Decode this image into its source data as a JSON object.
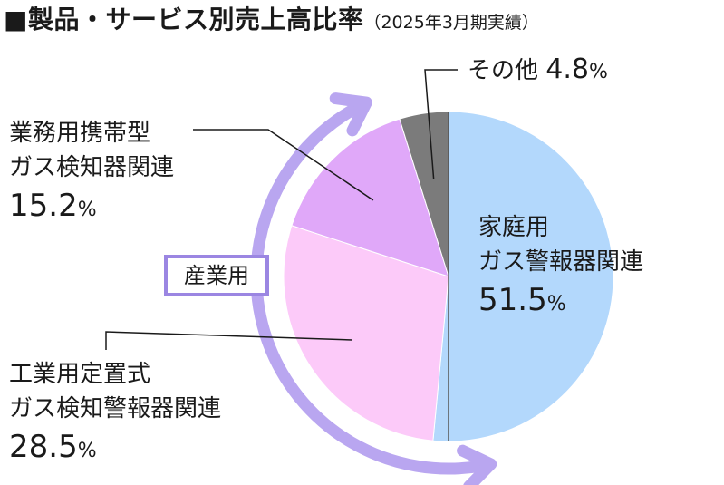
{
  "title": {
    "main": "■製品・サービス別売上高比率",
    "sub": "（2025年3月期実績）"
  },
  "badge": "産業用",
  "chart_data": {
    "type": "pie",
    "title": "製品・サービス別売上高比率（2025年3月期実績）",
    "unit": "%",
    "slices": [
      {
        "name": "家庭用ガス警報器関連",
        "lines": [
          "家庭用",
          "ガス警報器関連"
        ],
        "value": 51.5,
        "color": "#b3d8fc"
      },
      {
        "name": "工業用定置式ガス検知警報器関連",
        "lines": [
          "工業用定置式",
          "ガス検知警報器関連"
        ],
        "value": 28.5,
        "color": "#fccaf9"
      },
      {
        "name": "業務用携帯型ガス検知器関連",
        "lines": [
          "業務用携帯型",
          "ガス検知器関連"
        ],
        "value": 15.2,
        "color": "#e0a8f9"
      },
      {
        "name": "その他",
        "lines": [
          "その他"
        ],
        "value": 4.8,
        "color": "#7b7b7b"
      }
    ],
    "group_arrow": {
      "label": "産業用",
      "color": "#b9a6f0"
    }
  }
}
